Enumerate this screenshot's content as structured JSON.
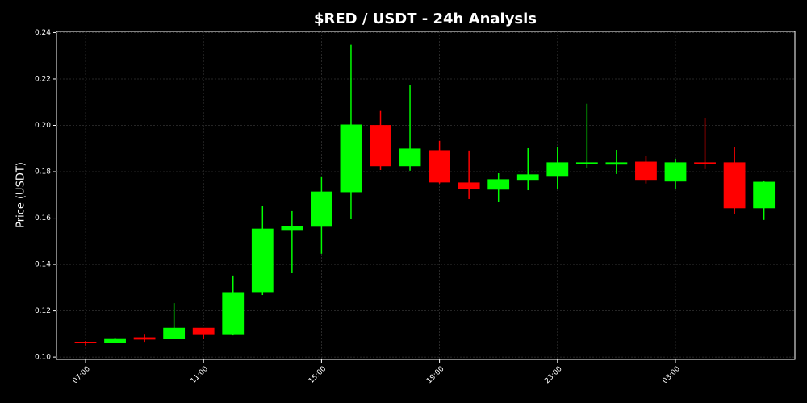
{
  "chart_data": {
    "type": "candlestick",
    "title": "$RED / USDT - 24h Analysis",
    "ylabel": "Price (USDT)",
    "categories": [
      "07:00",
      null,
      null,
      null,
      "11:00",
      null,
      null,
      null,
      "15:00",
      null,
      null,
      null,
      "19:00",
      null,
      null,
      null,
      "23:00",
      null,
      null,
      null,
      "03:00",
      null,
      null,
      null
    ],
    "open": [
      0.1065,
      0.1063,
      0.1084,
      0.108,
      0.1125,
      0.1097,
      0.1282,
      0.155,
      0.1564,
      0.1713,
      0.2,
      0.1825,
      0.1891,
      0.1752,
      0.1724,
      0.1766,
      0.1783,
      0.1836,
      0.1832,
      0.1842,
      0.1759,
      0.1839,
      0.1839,
      0.1644
    ],
    "high": [
      0.107,
      0.1084,
      0.1097,
      0.1233,
      0.1125,
      0.1352,
      0.1654,
      0.163,
      0.178,
      0.2347,
      0.2062,
      0.2173,
      0.1933,
      0.1891,
      0.1793,
      0.1901,
      0.1908,
      0.2093,
      0.1894,
      0.1867,
      0.1856,
      0.203,
      0.1905,
      0.1762
    ],
    "low": [
      0.105,
      0.1063,
      0.1066,
      0.1077,
      0.108,
      0.1094,
      0.1268,
      0.1362,
      0.1446,
      0.1595,
      0.1807,
      0.1804,
      0.1749,
      0.1682,
      0.1668,
      0.172,
      0.1724,
      0.1814,
      0.179,
      0.1749,
      0.1727,
      0.1811,
      0.1619,
      0.1592
    ],
    "close": [
      0.1062,
      0.108,
      0.1077,
      0.1125,
      0.1097,
      0.1279,
      0.1553,
      0.1564,
      0.1713,
      0.2002,
      0.1825,
      0.1898,
      0.1755,
      0.1727,
      0.1766,
      0.1787,
      0.1839,
      0.1839,
      0.1839,
      0.1766,
      0.1839,
      0.1836,
      0.1644,
      0.1755
    ],
    "up_color": "#00ff00",
    "down_color": "#ff0000",
    "ylim": [
      0.099,
      0.2405
    ],
    "yticks": [
      {
        "value": 0.1,
        "label": "0.10"
      },
      0.12,
      0.14,
      0.16,
      0.18,
      {
        "value": 0.2,
        "label": "0.20"
      },
      0.22,
      0.24
    ],
    "grid": true
  }
}
